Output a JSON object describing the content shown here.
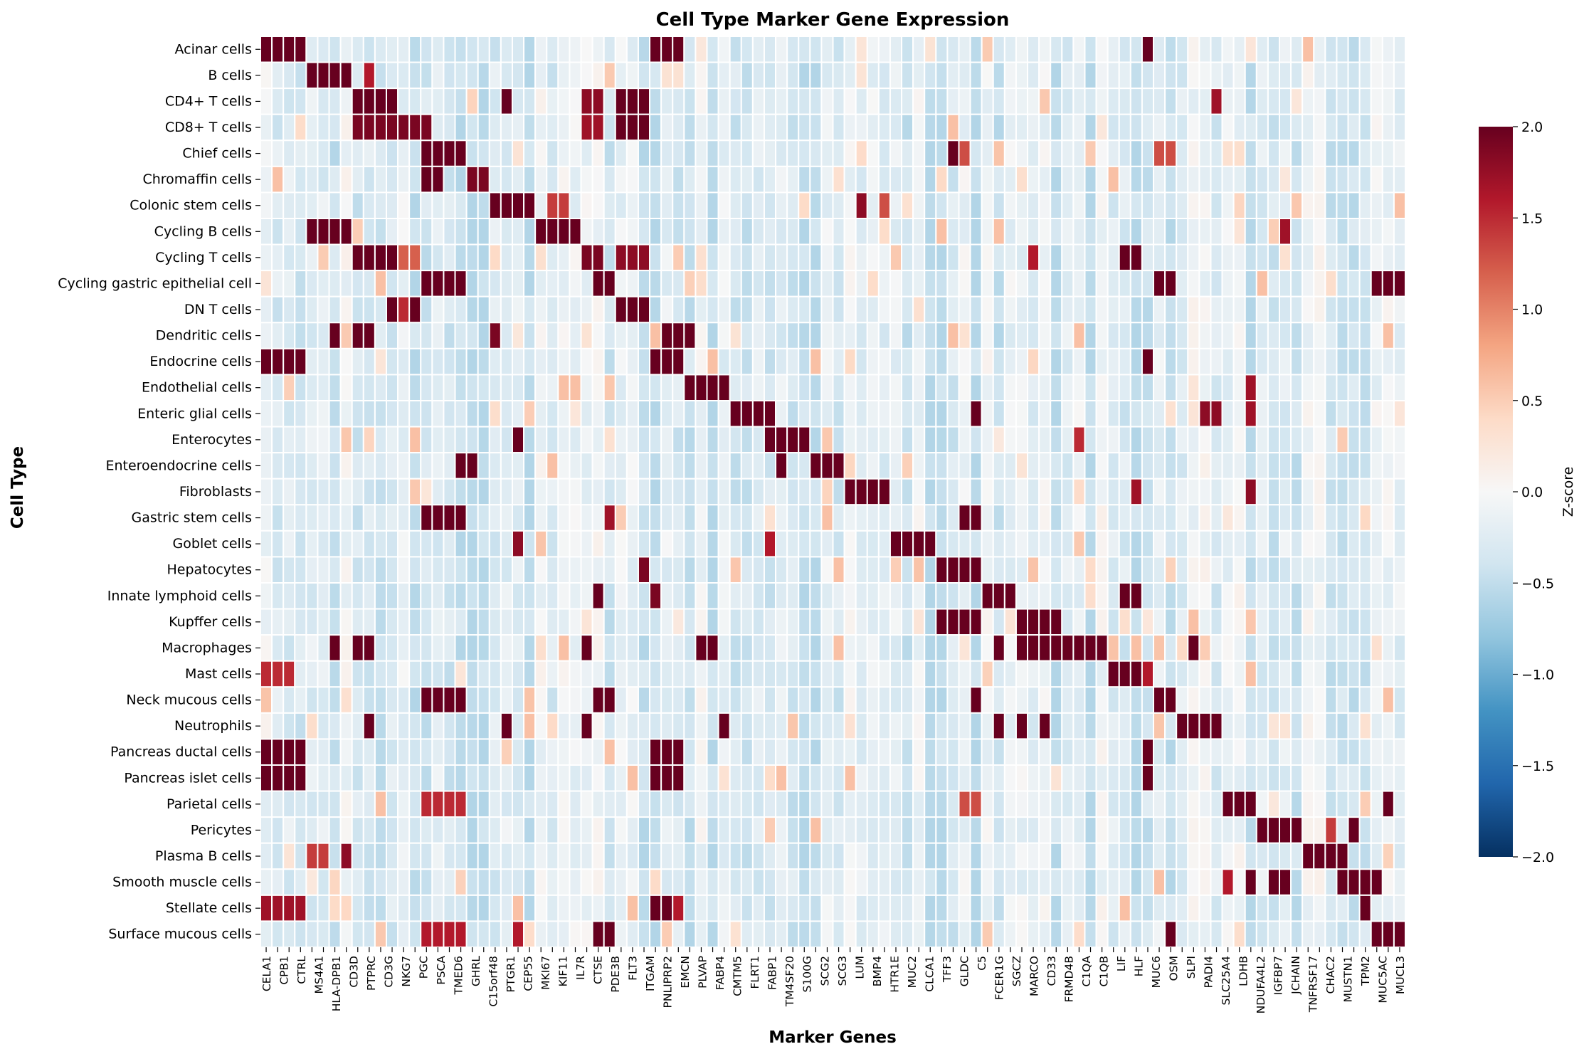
{
  "chart_data": {
    "type": "heatmap",
    "title": "Cell Type Marker Gene Expression",
    "xlabel": "Marker Genes",
    "ylabel": "Cell Type",
    "colorbar": {
      "label": "Z-score",
      "range": [
        -2.0,
        2.0
      ],
      "ticks": [
        "2.0",
        "1.5",
        "1.0",
        "0.5",
        "0.0",
        "−0.5",
        "−1.0",
        "−1.5",
        "−2.0"
      ],
      "colormap": "RdBu_r",
      "stops": [
        "#053061",
        "#2166ac",
        "#4393c3",
        "#92c5de",
        "#d1e5f0",
        "#f7f7f7",
        "#fddbc7",
        "#f4a582",
        "#d6604d",
        "#b2182b",
        "#67001f"
      ]
    },
    "rows": [
      "Acinar cells",
      "B cells",
      "CD4+ T cells",
      "CD8+ T cells",
      "Chief cells",
      "Chromaffin cells",
      "Colonic stem cells",
      "Cycling B cells",
      "Cycling T cells",
      "Cycling gastric epithelial cell",
      "DN T cells",
      "Dendritic cells",
      "Endocrine cells",
      "Endothelial cells",
      "Enteric glial cells",
      "Enterocytes",
      "Enteroendocrine cells",
      "Fibroblasts",
      "Gastric stem cells",
      "Goblet cells",
      "Hepatocytes",
      "Innate lymphoid cells",
      "Kupffer cells",
      "Macrophages",
      "Mast cells",
      "Neck mucous cells",
      "Neutrophils",
      "Pancreas ductal cells",
      "Pancreas islet cells",
      "Parietal cells",
      "Pericytes",
      "Plasma B cells",
      "Smooth muscle cells",
      "Stellate cells",
      "Surface mucous cells"
    ],
    "column_count": 100,
    "x_tick_labels": [
      "CELA1",
      "CPB1",
      "CTRL",
      "MS4A1",
      "HLA-DPB1",
      "CD3D",
      "PTPRC",
      "CD3G",
      "NKG7",
      "PGC",
      "PSCA",
      "TMED6",
      "GHRL",
      "C15orf48",
      "PTGR1",
      "CEP55",
      "MKI67",
      "KIF11",
      "IL7R",
      "CTSE",
      "PDE3B",
      "FLT3",
      "ITGAM",
      "PNLIPRP2",
      "EMCN",
      "PLVAP",
      "FABP4",
      "CMTM5",
      "FLRT1",
      "FABP1",
      "TM4SF20",
      "S100G",
      "SCG2",
      "SCG3",
      "LUM",
      "BMP4",
      "HTR1E",
      "MUC2",
      "CLCA1",
      "TFF3",
      "GLDC",
      "C5",
      "FCER1G",
      "SGCZ",
      "MARCO",
      "CD33",
      "FRMD4B",
      "C1QA",
      "C1QB",
      "LIF",
      "HLF",
      "MUC6",
      "OSM",
      "SLPI",
      "PADI4",
      "SLC25A4",
      "LDHB",
      "NDUFA4L2",
      "IGFBP7",
      "JCHAIN",
      "TNFRSF17",
      "CHAC2",
      "MUSTN1",
      "TPM2",
      "MUC5AC",
      "MUCL3"
    ],
    "x_tick_every": "every other column (odd tick labels offset)",
    "value_range": [
      -2,
      2
    ],
    "high_blocks": [
      {
        "row": "Acinar cells",
        "cols": [
          0,
          1,
          2,
          3
        ],
        "value": 2.0
      },
      {
        "row": "Acinar cells",
        "cols": [
          34,
          35,
          36
        ],
        "value": 2.0
      },
      {
        "row": "Acinar cells",
        "cols": [
          77
        ],
        "value": 2.0
      },
      {
        "row": "B cells",
        "cols": [
          4,
          5,
          6,
          7
        ],
        "value": 2.0
      },
      {
        "row": "B cells",
        "cols": [
          9
        ],
        "value": 1.6
      },
      {
        "row": "CD4+ T cells",
        "cols": [
          8,
          9,
          10,
          11
        ],
        "value": 2.0
      },
      {
        "row": "CD4+ T cells",
        "cols": [
          21
        ],
        "value": 2.0
      },
      {
        "row": "CD4+ T cells",
        "cols": [
          28,
          29
        ],
        "value": 1.8
      },
      {
        "row": "CD4+ T cells",
        "cols": [
          31,
          32,
          33
        ],
        "value": 2.0
      },
      {
        "row": "CD4+ T cells",
        "cols": [
          83
        ],
        "value": 1.7
      },
      {
        "row": "CD8+ T cells",
        "cols": [
          8,
          9,
          10,
          11,
          12,
          13,
          14
        ],
        "value": 1.9
      },
      {
        "row": "CD8+ T cells",
        "cols": [
          28,
          29
        ],
        "value": 1.7
      },
      {
        "row": "CD8+ T cells",
        "cols": [
          31,
          32,
          33
        ],
        "value": 2.0
      },
      {
        "row": "Chief cells",
        "cols": [
          14,
          15,
          16,
          17
        ],
        "value": 2.0
      },
      {
        "row": "Chief cells",
        "cols": [
          60
        ],
        "value": 2.0
      },
      {
        "row": "Chief cells",
        "cols": [
          61
        ],
        "value": 1.3
      },
      {
        "row": "Chief cells",
        "cols": [
          78,
          79
        ],
        "value": 1.3
      },
      {
        "row": "Chromaffin cells",
        "cols": [
          14,
          15
        ],
        "value": 2.0
      },
      {
        "row": "Chromaffin cells",
        "cols": [
          18,
          19
        ],
        "value": 1.9
      },
      {
        "row": "Colonic stem cells",
        "cols": [
          20,
          21,
          22,
          23
        ],
        "value": 2.0
      },
      {
        "row": "Colonic stem cells",
        "cols": [
          25,
          26
        ],
        "value": 1.4
      },
      {
        "row": "Colonic stem cells",
        "cols": [
          52
        ],
        "value": 1.8
      },
      {
        "row": "Colonic stem cells",
        "cols": [
          54
        ],
        "value": 1.3
      },
      {
        "row": "Cycling B cells",
        "cols": [
          4,
          5,
          6,
          7
        ],
        "value": 2.0
      },
      {
        "row": "Cycling B cells",
        "cols": [
          24,
          25,
          26,
          27
        ],
        "value": 2.0
      },
      {
        "row": "Cycling B cells",
        "cols": [
          89
        ],
        "value": 1.7
      },
      {
        "row": "Cycling T cells",
        "cols": [
          8,
          9,
          10,
          11
        ],
        "value": 2.0
      },
      {
        "row": "Cycling T cells",
        "cols": [
          12,
          13
        ],
        "value": 1.2
      },
      {
        "row": "Cycling T cells",
        "cols": [
          28,
          29
        ],
        "value": 1.9
      },
      {
        "row": "Cycling T cells",
        "cols": [
          31,
          32,
          33
        ],
        "value": 1.8
      },
      {
        "row": "Cycling T cells",
        "cols": [
          67
        ],
        "value": 1.6
      },
      {
        "row": "Cycling T cells",
        "cols": [
          75,
          76
        ],
        "value": 2.0
      },
      {
        "row": "Cycling gastric epithelial cell",
        "cols": [
          14,
          15,
          16,
          17
        ],
        "value": 2.0
      },
      {
        "row": "Cycling gastric epithelial cell",
        "cols": [
          29,
          30
        ],
        "value": 2.0
      },
      {
        "row": "Cycling gastric epithelial cell",
        "cols": [
          78,
          79
        ],
        "value": 2.0
      },
      {
        "row": "Cycling gastric epithelial cell",
        "cols": [
          97,
          98,
          99
        ],
        "value": 2.0
      },
      {
        "row": "DN T cells",
        "cols": [
          11
        ],
        "value": 2.0
      },
      {
        "row": "DN T cells",
        "cols": [
          12
        ],
        "value": 1.5
      },
      {
        "row": "DN T cells",
        "cols": [
          13
        ],
        "value": 2.0
      },
      {
        "row": "DN T cells",
        "cols": [
          31,
          32,
          33
        ],
        "value": 2.0
      },
      {
        "row": "Dendritic cells",
        "cols": [
          6
        ],
        "value": 2.0
      },
      {
        "row": "Dendritic cells",
        "cols": [
          8,
          9
        ],
        "value": 2.0
      },
      {
        "row": "Dendritic cells",
        "cols": [
          35,
          36,
          37
        ],
        "value": 2.0
      },
      {
        "row": "Dendritic cells",
        "cols": [
          20
        ],
        "value": 1.9
      },
      {
        "row": "Endocrine cells",
        "cols": [
          0,
          1,
          2,
          3
        ],
        "value": 2.0
      },
      {
        "row": "Endocrine cells",
        "cols": [
          34,
          35,
          36
        ],
        "value": 2.0
      },
      {
        "row": "Endocrine cells",
        "cols": [
          77
        ],
        "value": 2.0
      },
      {
        "row": "Endothelial cells",
        "cols": [
          37,
          38,
          39,
          40
        ],
        "value": 2.0
      },
      {
        "row": "Endothelial cells",
        "cols": [
          86
        ],
        "value": 1.7
      },
      {
        "row": "Enteric glial cells",
        "cols": [
          41,
          42,
          43,
          44
        ],
        "value": 2.0
      },
      {
        "row": "Enteric glial cells",
        "cols": [
          62
        ],
        "value": 2.0
      },
      {
        "row": "Enteric glial cells",
        "cols": [
          82,
          83
        ],
        "value": 1.8
      },
      {
        "row": "Enteric glial cells",
        "cols": [
          86
        ],
        "value": 1.7
      },
      {
        "row": "Enterocytes",
        "cols": [
          44,
          45,
          46,
          47
        ],
        "value": 2.0
      },
      {
        "row": "Enterocytes",
        "cols": [
          22
        ],
        "value": 2.0
      },
      {
        "row": "Enterocytes",
        "cols": [
          71
        ],
        "value": 1.5
      },
      {
        "row": "Enteroendocrine cells",
        "cols": [
          48,
          49,
          50
        ],
        "value": 2.0
      },
      {
        "row": "Enteroendocrine cells",
        "cols": [
          17,
          18
        ],
        "value": 2.0
      },
      {
        "row": "Enteroendocrine cells",
        "cols": [
          45
        ],
        "value": 2.0
      },
      {
        "row": "Fibroblasts",
        "cols": [
          51,
          52,
          53,
          54
        ],
        "value": 2.0
      },
      {
        "row": "Fibroblasts",
        "cols": [
          76
        ],
        "value": 1.7
      },
      {
        "row": "Fibroblasts",
        "cols": [
          86
        ],
        "value": 1.8
      },
      {
        "row": "Gastric stem cells",
        "cols": [
          14,
          15,
          16,
          17
        ],
        "value": 2.0
      },
      {
        "row": "Gastric stem cells",
        "cols": [
          61,
          62
        ],
        "value": 2.0
      },
      {
        "row": "Gastric stem cells",
        "cols": [
          30
        ],
        "value": 1.7
      },
      {
        "row": "Goblet cells",
        "cols": [
          55,
          56,
          57,
          58
        ],
        "value": 2.0
      },
      {
        "row": "Goblet cells",
        "cols": [
          44
        ],
        "value": 1.6
      },
      {
        "row": "Goblet cells",
        "cols": [
          22
        ],
        "value": 1.8
      },
      {
        "row": "Hepatocytes",
        "cols": [
          59,
          60,
          61,
          62
        ],
        "value": 2.0
      },
      {
        "row": "Hepatocytes",
        "cols": [
          33
        ],
        "value": 1.9
      },
      {
        "row": "Innate lymphoid cells",
        "cols": [
          63,
          64,
          65
        ],
        "value": 2.0
      },
      {
        "row": "Innate lymphoid cells",
        "cols": [
          75,
          76
        ],
        "value": 2.0
      },
      {
        "row": "Innate lymphoid cells",
        "cols": [
          29
        ],
        "value": 2.0
      },
      {
        "row": "Innate lymphoid cells",
        "cols": [
          34
        ],
        "value": 1.9
      },
      {
        "row": "Kupffer cells",
        "cols": [
          59,
          60,
          61,
          62
        ],
        "value": 2.0
      },
      {
        "row": "Kupffer cells",
        "cols": [
          66,
          67,
          68,
          69
        ],
        "value": 2.0
      },
      {
        "row": "Macrophages",
        "cols": [
          66,
          67,
          68,
          69,
          70,
          71,
          72,
          73
        ],
        "value": 2.0
      },
      {
        "row": "Macrophages",
        "cols": [
          6
        ],
        "value": 2.0
      },
      {
        "row": "Macrophages",
        "cols": [
          8,
          9
        ],
        "value": 2.0
      },
      {
        "row": "Macrophages",
        "cols": [
          28
        ],
        "value": 2.0
      },
      {
        "row": "Macrophages",
        "cols": [
          38,
          39
        ],
        "value": 2.0
      },
      {
        "row": "Macrophages",
        "cols": [
          64
        ],
        "value": 2.0
      },
      {
        "row": "Macrophages",
        "cols": [
          81
        ],
        "value": 2.0
      },
      {
        "row": "Mast cells",
        "cols": [
          0,
          1,
          2
        ],
        "value": 1.5
      },
      {
        "row": "Mast cells",
        "cols": [
          74,
          75,
          76
        ],
        "value": 2.0
      },
      {
        "row": "Mast cells",
        "cols": [
          77
        ],
        "value": 1.6
      },
      {
        "row": "Neck mucous cells",
        "cols": [
          14,
          15,
          16,
          17
        ],
        "value": 2.0
      },
      {
        "row": "Neck mucous cells",
        "cols": [
          29,
          30
        ],
        "value": 2.0
      },
      {
        "row": "Neck mucous cells",
        "cols": [
          62
        ],
        "value": 2.0
      },
      {
        "row": "Neck mucous cells",
        "cols": [
          78,
          79
        ],
        "value": 2.0
      },
      {
        "row": "Neutrophils",
        "cols": [
          80,
          81,
          82,
          83
        ],
        "value": 2.0
      },
      {
        "row": "Neutrophils",
        "cols": [
          9
        ],
        "value": 2.0
      },
      {
        "row": "Neutrophils",
        "cols": [
          21
        ],
        "value": 2.0
      },
      {
        "row": "Neutrophils",
        "cols": [
          28
        ],
        "value": 2.0
      },
      {
        "row": "Neutrophils",
        "cols": [
          40
        ],
        "value": 2.0
      },
      {
        "row": "Neutrophils",
        "cols": [
          64
        ],
        "value": 2.0
      },
      {
        "row": "Neutrophils",
        "cols": [
          66
        ],
        "value": 2.0
      },
      {
        "row": "Neutrophils",
        "cols": [
          68
        ],
        "value": 2.0
      },
      {
        "row": "Pancreas ductal cells",
        "cols": [
          0,
          1,
          2,
          3
        ],
        "value": 2.0
      },
      {
        "row": "Pancreas ductal cells",
        "cols": [
          34,
          35,
          36
        ],
        "value": 2.0
      },
      {
        "row": "Pancreas ductal cells",
        "cols": [
          77
        ],
        "value": 2.0
      },
      {
        "row": "Pancreas islet cells",
        "cols": [
          0,
          1,
          2,
          3
        ],
        "value": 2.0
      },
      {
        "row": "Pancreas islet cells",
        "cols": [
          34,
          35,
          36
        ],
        "value": 2.0
      },
      {
        "row": "Pancreas islet cells",
        "cols": [
          77
        ],
        "value": 2.0
      },
      {
        "row": "Parietal cells",
        "cols": [
          84,
          85,
          86
        ],
        "value": 2.0
      },
      {
        "row": "Parietal cells",
        "cols": [
          14,
          15,
          16,
          17
        ],
        "value": 1.5
      },
      {
        "row": "Parietal cells",
        "cols": [
          61,
          62
        ],
        "value": 1.3
      },
      {
        "row": "Parietal cells",
        "cols": [
          98
        ],
        "value": 2.0
      },
      {
        "row": "Pericytes",
        "cols": [
          87,
          88,
          89,
          90
        ],
        "value": 2.0
      },
      {
        "row": "Pericytes",
        "cols": [
          93
        ],
        "value": 1.4
      },
      {
        "row": "Pericytes",
        "cols": [
          95
        ],
        "value": 2.0
      },
      {
        "row": "Plasma B cells",
        "cols": [
          91,
          92,
          93,
          94
        ],
        "value": 2.0
      },
      {
        "row": "Plasma B cells",
        "cols": [
          4,
          5
        ],
        "value": 1.4
      },
      {
        "row": "Plasma B cells",
        "cols": [
          7
        ],
        "value": 1.8
      },
      {
        "row": "Smooth muscle cells",
        "cols": [
          94,
          95,
          96,
          97
        ],
        "value": 2.0
      },
      {
        "row": "Smooth muscle cells",
        "cols": [
          84
        ],
        "value": 1.6
      },
      {
        "row": "Smooth muscle cells",
        "cols": [
          86
        ],
        "value": 2.0
      },
      {
        "row": "Smooth muscle cells",
        "cols": [
          88,
          89
        ],
        "value": 2.0
      },
      {
        "row": "Stellate cells",
        "cols": [
          0,
          1,
          2,
          3
        ],
        "value": 1.7
      },
      {
        "row": "Stellate cells",
        "cols": [
          34,
          35
        ],
        "value": 2.0
      },
      {
        "row": "Stellate cells",
        "cols": [
          36
        ],
        "value": 1.6
      },
      {
        "row": "Stellate cells",
        "cols": [
          96
        ],
        "value": 2.0
      },
      {
        "row": "Surface mucous cells",
        "cols": [
          97,
          98,
          99
        ],
        "value": 2.0
      },
      {
        "row": "Surface mucous cells",
        "cols": [
          14,
          15,
          16,
          17
        ],
        "value": 1.6
      },
      {
        "row": "Surface mucous cells",
        "cols": [
          29,
          30
        ],
        "value": 2.0
      },
      {
        "row": "Surface mucous cells",
        "cols": [
          22
        ],
        "value": 1.6
      },
      {
        "row": "Surface mucous cells",
        "cols": [
          79
        ],
        "value": 2.0
      }
    ],
    "background_z_range": [
      -0.6,
      0.6
    ]
  }
}
